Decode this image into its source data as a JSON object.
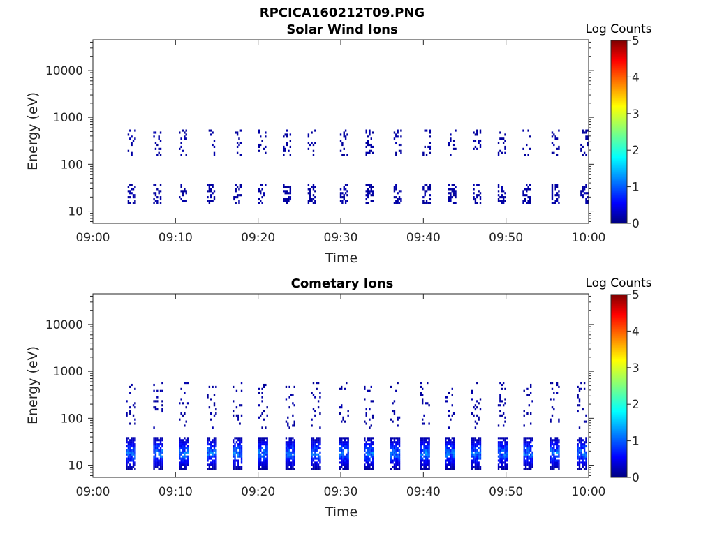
{
  "figure_title": "RPCICA160212T09.PNG",
  "colorbar": {
    "title": "Log Counts",
    "ticks": [
      "0",
      "1",
      "2",
      "3",
      "4",
      "5"
    ],
    "range": [
      0,
      5
    ],
    "colormap": "jet"
  },
  "chart_data": [
    {
      "type": "heatmap",
      "title": "Solar Wind Ions",
      "xlabel": "Time",
      "ylabel": "Energy (eV)",
      "xticks": [
        "09:00",
        "09:10",
        "09:20",
        "09:30",
        "09:40",
        "09:50",
        "10:00"
      ],
      "yticks": [
        "10",
        "100",
        "1000",
        "10000"
      ],
      "xlim_minutes": [
        0,
        60
      ],
      "ylim_eV": [
        5.5,
        45000
      ],
      "yscale": "log",
      "color_value_range": [
        0,
        5
      ],
      "bands": [
        {
          "energy_range_eV": [
            14,
            35
          ],
          "typical_log_counts": 0.1
        },
        {
          "energy_range_eV": [
            150,
            500
          ],
          "typical_log_counts": 0.1
        }
      ],
      "sweep_start_minutes": [
        4.2,
        7.3,
        10.4,
        13.8,
        17.0,
        20.0,
        23.0,
        26.0,
        29.9,
        33.0,
        36.4,
        39.9,
        43.0,
        46.0,
        49.0,
        52.0,
        55.5,
        59.0
      ]
    },
    {
      "type": "heatmap",
      "title": "Cometary Ions",
      "xlabel": "Time",
      "ylabel": "Energy (eV)",
      "xticks": [
        "09:00",
        "09:10",
        "09:20",
        "09:30",
        "09:40",
        "09:50",
        "10:00"
      ],
      "yticks": [
        "10",
        "100",
        "1000",
        "10000"
      ],
      "xlim_minutes": [
        0,
        60
      ],
      "ylim_eV": [
        5.5,
        45000
      ],
      "yscale": "log",
      "color_value_range": [
        0,
        5
      ],
      "bands": [
        {
          "energy_range_eV": [
            8,
            38
          ],
          "typical_log_counts": 1.0
        },
        {
          "energy_range_eV": [
            60,
            600
          ],
          "typical_log_counts": 0.1
        }
      ],
      "sweep_start_minutes": [
        4.0,
        7.3,
        10.4,
        13.8,
        16.9,
        20.0,
        23.3,
        26.4,
        29.8,
        32.8,
        36.0,
        39.6,
        42.6,
        45.8,
        49.0,
        52.1,
        55.3,
        58.6
      ]
    }
  ]
}
